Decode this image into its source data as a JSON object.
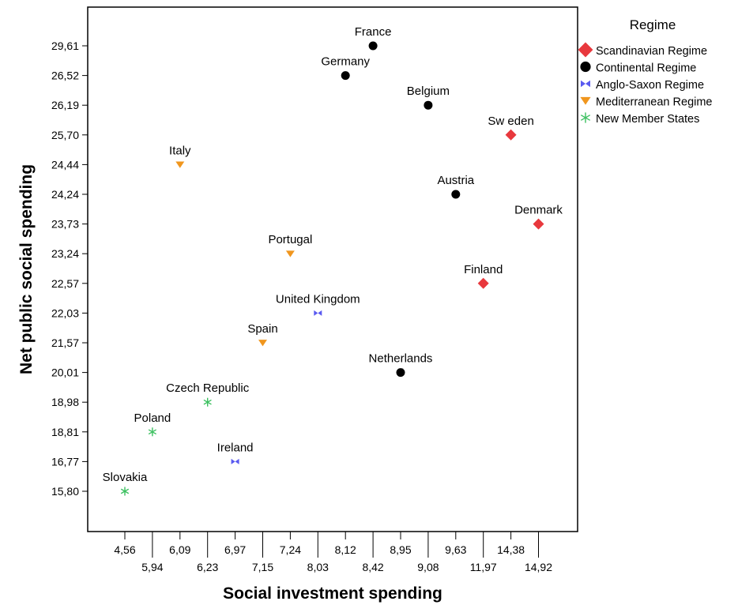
{
  "chart_data": {
    "type": "scatter",
    "xlabel": "Social investment spending",
    "ylabel": "Net public social spending",
    "x_categories": [
      "4,56",
      "5,94",
      "6,09",
      "6,23",
      "6,97",
      "7,15",
      "7,24",
      "8,03",
      "8,12",
      "8,42",
      "8,95",
      "9,08",
      "9,63",
      "11,97",
      "14,38",
      "14,92"
    ],
    "y_categories": [
      "15,80",
      "16,77",
      "18,81",
      "18,98",
      "20,01",
      "21,57",
      "22,03",
      "22,57",
      "23,24",
      "23,73",
      "24,24",
      "24,44",
      "25,70",
      "26,19",
      "26,52",
      "29,61"
    ],
    "legend": {
      "title": "Regime",
      "position": "right",
      "entries": [
        {
          "name": "Scandinavian Regime",
          "marker": "diamond",
          "color": "#e8383d"
        },
        {
          "name": "Continental Regime",
          "marker": "circle",
          "color": "#000000"
        },
        {
          "name": "Anglo-Saxon Regime",
          "marker": "bowtie",
          "color": "#5a5af0"
        },
        {
          "name": "Mediterranean Regime",
          "marker": "triangle-down",
          "color": "#f0961e"
        },
        {
          "name": "New Member States",
          "marker": "star",
          "color": "#3cc060"
        }
      ]
    },
    "points": [
      {
        "label": "Slovakia",
        "x": "4,56",
        "y": "15,80",
        "regime": 4
      },
      {
        "label": "Poland",
        "x": "5,94",
        "y": "18,81",
        "regime": 4
      },
      {
        "label": "Italy",
        "x": "6,09",
        "y": "24,44",
        "regime": 3
      },
      {
        "label": "Czech Republic",
        "x": "6,23",
        "y": "18,98",
        "regime": 4
      },
      {
        "label": "Ireland",
        "x": "6,97",
        "y": "16,77",
        "regime": 2
      },
      {
        "label": "Spain",
        "x": "7,15",
        "y": "21,57",
        "regime": 3
      },
      {
        "label": "Portugal",
        "x": "7,24",
        "y": "23,24",
        "regime": 3
      },
      {
        "label": "United Kingdom",
        "x": "8,03",
        "y": "22,03",
        "regime": 2
      },
      {
        "label": "Germany",
        "x": "8,12",
        "y": "26,52",
        "regime": 1
      },
      {
        "label": "France",
        "x": "8,42",
        "y": "29,61",
        "regime": 1
      },
      {
        "label": "Netherlands",
        "x": "8,95",
        "y": "20,01",
        "regime": 1
      },
      {
        "label": "Belgium",
        "x": "9,08",
        "y": "26,19",
        "regime": 1
      },
      {
        "label": "Austria",
        "x": "9,63",
        "y": "24,24",
        "regime": 1
      },
      {
        "label": "Finland",
        "x": "11,97",
        "y": "22,57",
        "regime": 0
      },
      {
        "label": "Sw eden",
        "x": "14,38",
        "y": "25,70",
        "regime": 0
      },
      {
        "label": "Denmark",
        "x": "14,92",
        "y": "23,73",
        "regime": 0
      }
    ],
    "grid": false
  }
}
